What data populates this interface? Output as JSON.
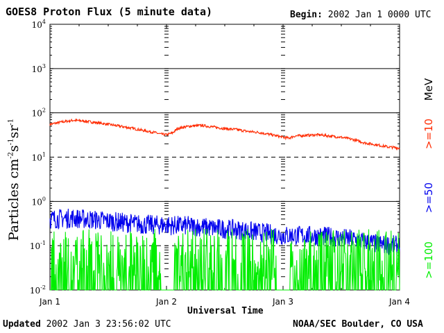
{
  "header": {
    "title": "GOES8 Proton Flux (5 minute data)",
    "begin_label": "Begin:",
    "begin_value": "2002 Jan 1 0000 UTC"
  },
  "footer": {
    "updated_label": "Updated",
    "updated_value": "2002 Jan  3 23:56:02 UTC",
    "source": "NOAA/SEC Boulder, CO USA"
  },
  "chart_data": {
    "type": "line",
    "title": "GOES8 Proton Flux (5 minute data)",
    "xlabel": "Universal Time",
    "ylabel": "Particles cm-2s-1sr-1",
    "y_scale": "log",
    "ylim": [
      0.01,
      10000
    ],
    "yticks": [
      {
        "base": "10",
        "exp": "4",
        "value": 10000
      },
      {
        "base": "10",
        "exp": "3",
        "value": 1000
      },
      {
        "base": "10",
        "exp": "2",
        "value": 100
      },
      {
        "base": "10",
        "exp": "1",
        "value": 10
      },
      {
        "base": "10",
        "exp": "0",
        "value": 1
      },
      {
        "base": "10",
        "exp": "-1",
        "value": 0.1
      },
      {
        "base": "10",
        "exp": "-2",
        "value": 0.01
      }
    ],
    "dashed_lines": [
      10,
      0.1
    ],
    "x_ticks": [
      "Jan 1",
      "Jan 2",
      "Jan 3",
      "Jan 4"
    ],
    "xlim_days": [
      0,
      3
    ],
    "series": [
      {
        "name": ">=10",
        "color": "#ff2a00",
        "x_days": [
          0.0,
          0.1,
          0.2,
          0.3,
          0.4,
          0.5,
          0.6,
          0.7,
          0.8,
          0.9,
          0.95,
          1.0,
          1.05,
          1.1,
          1.2,
          1.3,
          1.4,
          1.5,
          1.6,
          1.7,
          1.8,
          1.9,
          2.0,
          2.05,
          2.1,
          2.2,
          2.3,
          2.4,
          2.5,
          2.6,
          2.7,
          2.8,
          2.9,
          3.0
        ],
        "values": [
          55,
          62,
          68,
          65,
          60,
          55,
          50,
          45,
          40,
          36,
          33,
          32,
          35,
          45,
          50,
          52,
          48,
          44,
          42,
          38,
          36,
          32,
          28,
          27,
          30,
          31,
          32,
          30,
          28,
          25,
          21,
          19,
          17,
          16
        ]
      },
      {
        "name": ">=50",
        "color": "#0000ee",
        "x_days": [
          0.0,
          0.2,
          0.4,
          0.6,
          0.8,
          1.0,
          1.2,
          1.4,
          1.6,
          1.8,
          2.0,
          2.2,
          2.4,
          2.6,
          2.8,
          3.0
        ],
        "values": [
          0.4,
          0.42,
          0.38,
          0.34,
          0.3,
          0.29,
          0.28,
          0.25,
          0.23,
          0.2,
          0.17,
          0.17,
          0.16,
          0.14,
          0.11,
          0.1
        ]
      },
      {
        "name": ">=100",
        "color": "#00ee00",
        "x_days": [
          0.0,
          3.0
        ],
        "values": [
          0.035,
          0.035
        ],
        "noise_floor": 0.01,
        "note_data_gaps_days": [
          [
            0.95,
            1.06
          ],
          [
            1.95,
            2.06
          ]
        ]
      }
    ],
    "legend_unit": "MeV"
  }
}
